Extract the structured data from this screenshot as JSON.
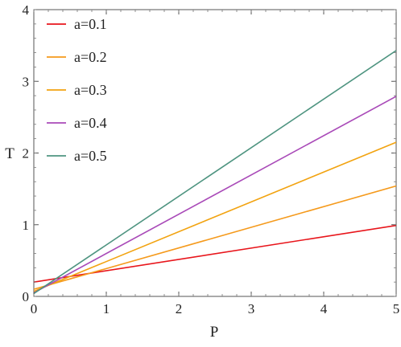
{
  "chart_data": {
    "type": "line",
    "title": "",
    "xlabel": "P",
    "ylabel": "T",
    "xlim": [
      0,
      5
    ],
    "ylim": [
      0,
      4
    ],
    "xticks": [
      "0",
      "1",
      "2",
      "3",
      "4",
      "5"
    ],
    "yticks": [
      "0",
      "1",
      "2",
      "3",
      "4"
    ],
    "grid": false,
    "legend_position": "top-left",
    "series": [
      {
        "name": "a=0.1",
        "color": "#e8151b",
        "x": [
          0,
          5
        ],
        "y": [
          0.2,
          0.99
        ]
      },
      {
        "name": "a=0.2",
        "color": "#f59a1c",
        "x": [
          0,
          5
        ],
        "y": [
          0.1,
          1.54
        ]
      },
      {
        "name": "a=0.3",
        "color": "#f2a310",
        "x": [
          0,
          5
        ],
        "y": [
          0.07,
          2.15
        ]
      },
      {
        "name": "a=0.4",
        "color": "#a94ab8",
        "x": [
          0,
          5
        ],
        "y": [
          0.05,
          2.79
        ]
      },
      {
        "name": "a=0.5",
        "color": "#4e9480",
        "x": [
          0,
          5
        ],
        "y": [
          0.04,
          3.43
        ]
      }
    ]
  }
}
